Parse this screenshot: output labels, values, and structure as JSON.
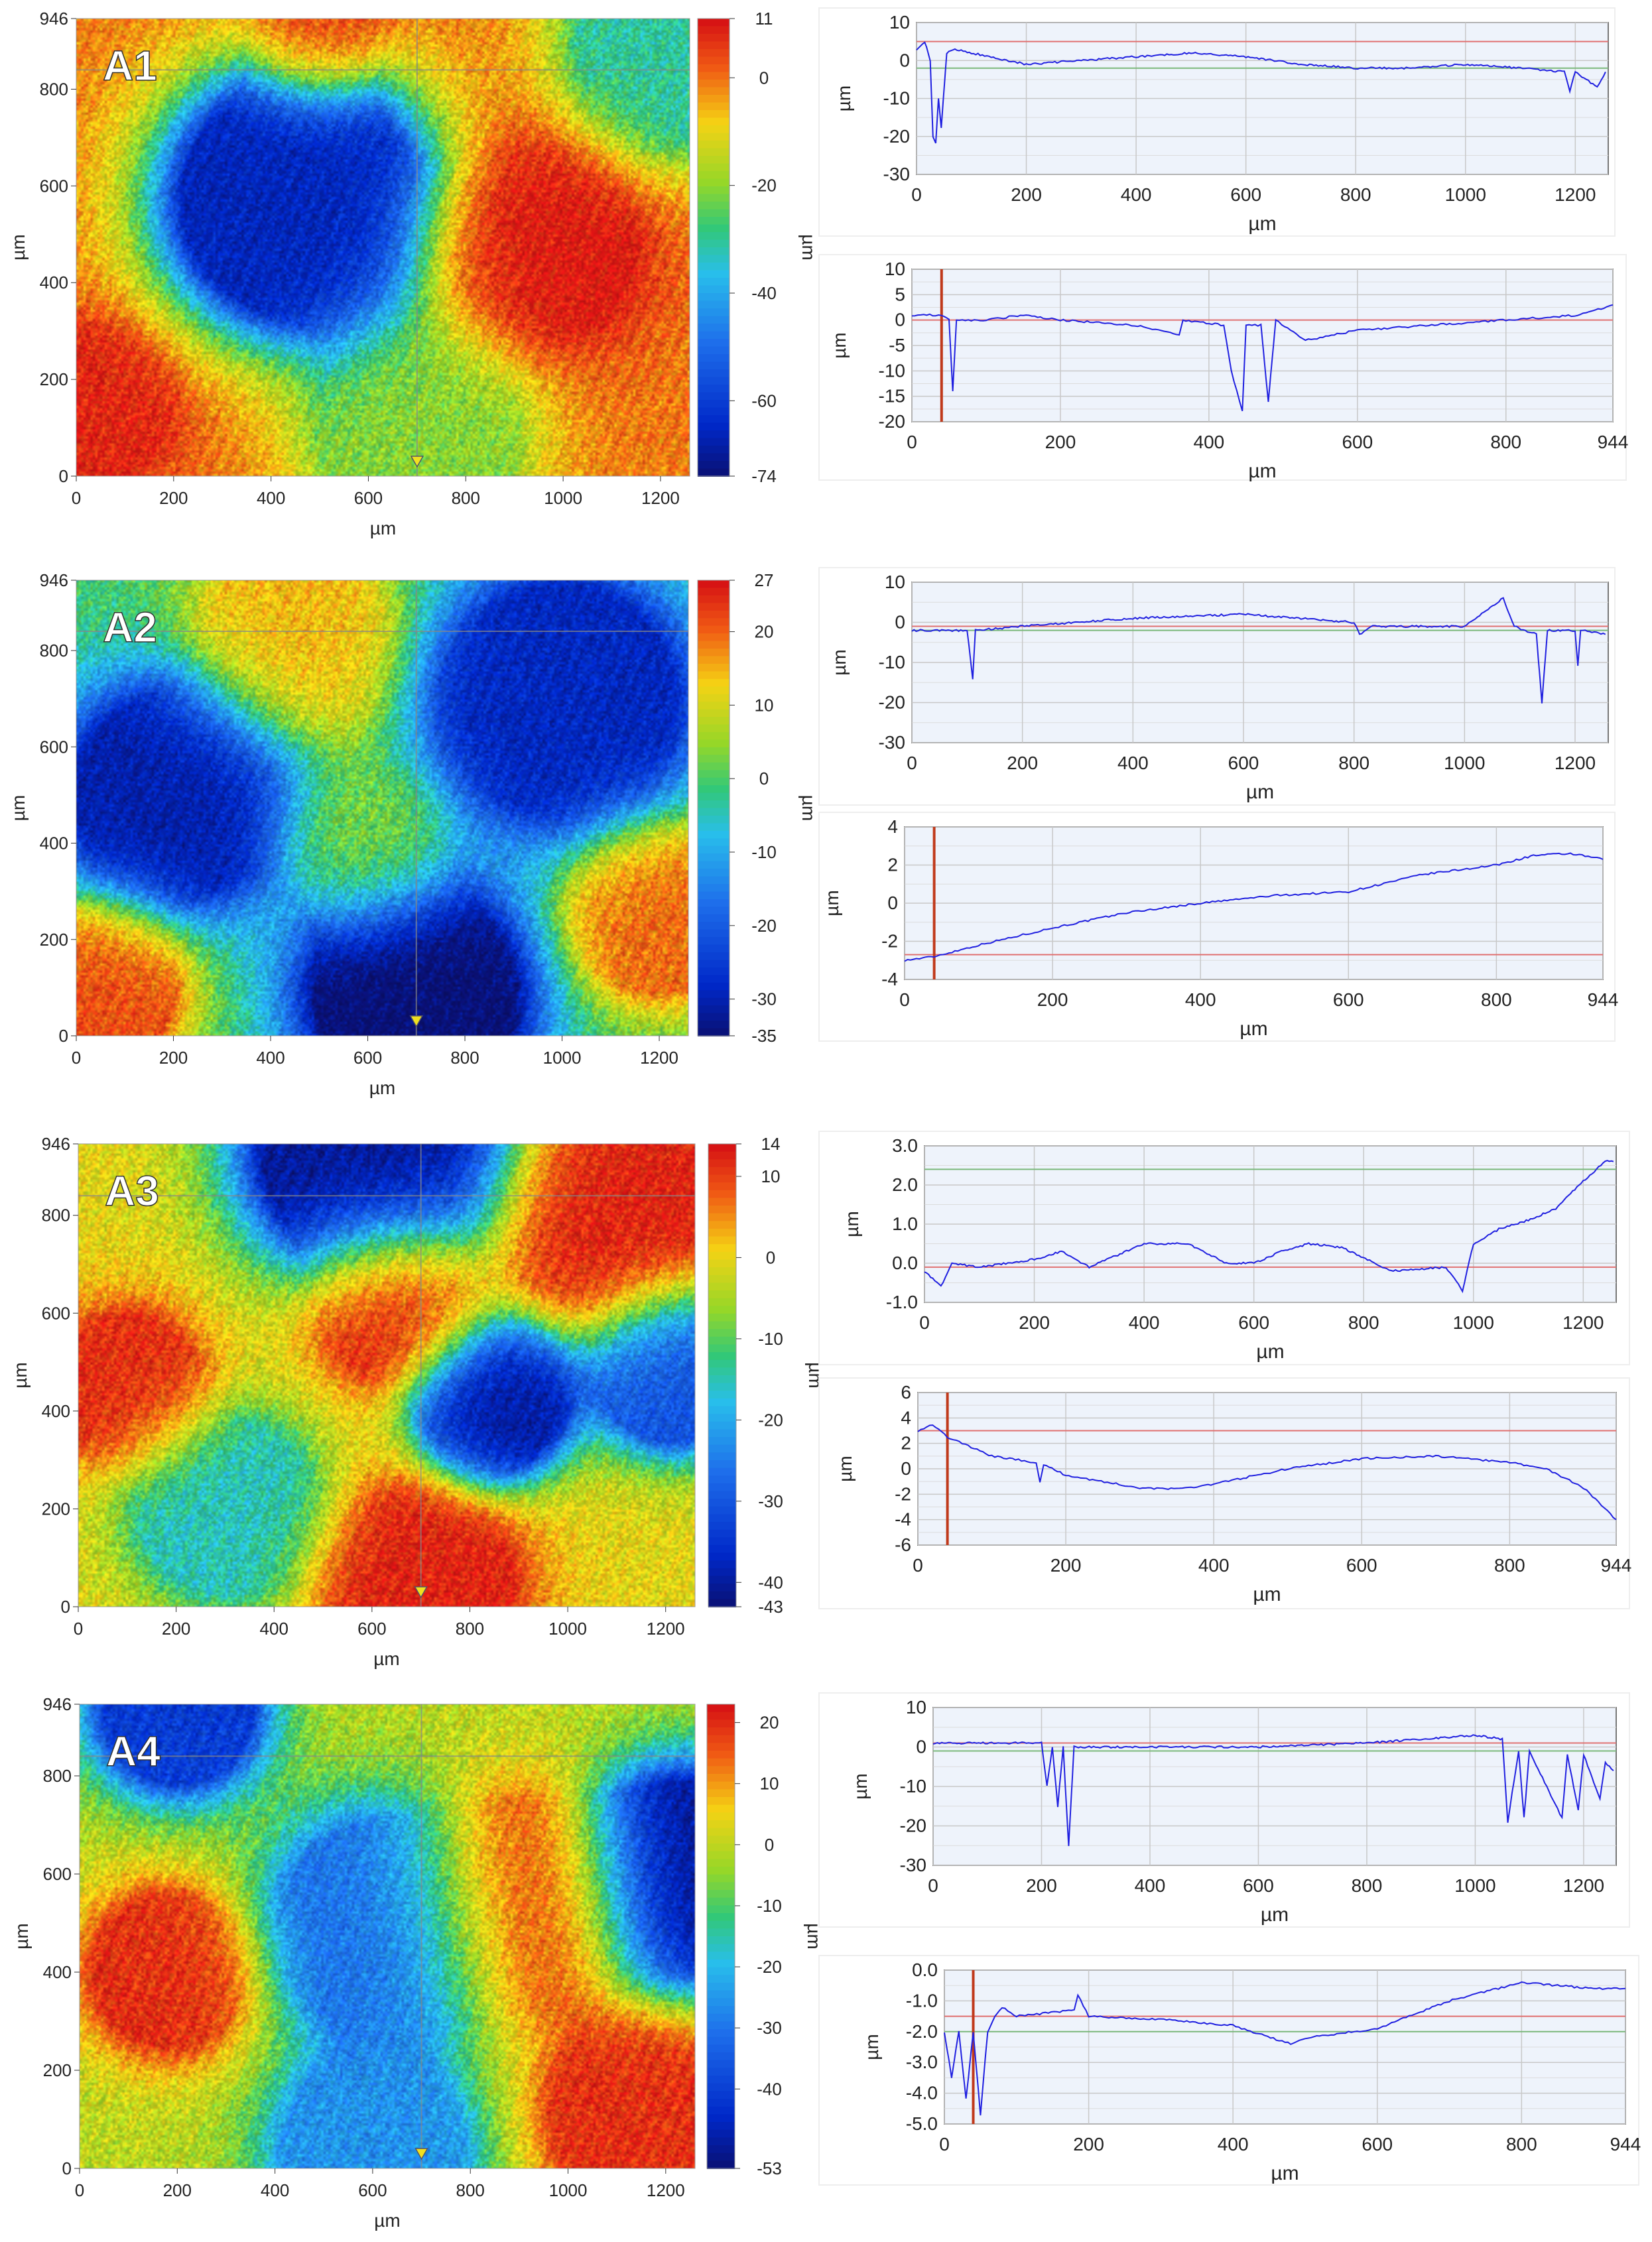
{
  "chart_data": [
    {
      "panel": "A1",
      "map": {
        "type": "heatmap",
        "label": "A1",
        "xlabel": "µm",
        "ylabel": "µm",
        "xlim": [
          0,
          1260
        ],
        "ylim": [
          0,
          946
        ],
        "xticks": [
          "0",
          "200",
          "400",
          "600",
          "800",
          "1000",
          "1200"
        ],
        "yticks": [
          "0",
          "200",
          "400",
          "600",
          "800",
          "946"
        ],
        "colorbar": {
          "label": "µm",
          "ticks": [
            "11",
            "0",
            "-20",
            "-40",
            "-60",
            "-74"
          ],
          "range": [
            -74,
            11
          ]
        },
        "features": [
          {
            "x": 450,
            "y": 570,
            "v": -65,
            "s": 230
          },
          {
            "x": 950,
            "y": 480,
            "v": 11,
            "s": 190
          },
          {
            "x": 40,
            "y": 150,
            "v": 9,
            "s": 150
          },
          {
            "x": 500,
            "y": 940,
            "v": 8,
            "s": 130
          },
          {
            "x": 1240,
            "y": 900,
            "v": -30,
            "s": 200
          },
          {
            "x": 700,
            "y": 80,
            "v": -20,
            "s": 200
          }
        ]
      },
      "profiles": [
        {
          "type": "line",
          "xlabel": "µm",
          "ylabel": "µm",
          "xlim": [
            0,
            1260
          ],
          "ylim": [
            -30,
            10
          ],
          "xticks": [
            "0",
            "200",
            "400",
            "600",
            "800",
            "1000",
            "1200"
          ],
          "yticks": [
            "10",
            "0",
            "-10",
            "-20",
            "-30"
          ],
          "ref_red": 5,
          "ref_green": -2,
          "x": [
            0,
            15,
            25,
            30,
            35,
            40,
            45,
            55,
            70,
            100,
            200,
            300,
            400,
            500,
            600,
            700,
            800,
            900,
            1000,
            1100,
            1180,
            1190,
            1200,
            1220,
            1240,
            1255
          ],
          "y": [
            3,
            5,
            0,
            -20,
            -22,
            -10,
            -18,
            2,
            3,
            2,
            -1,
            0,
            1,
            2,
            1,
            -1,
            -2,
            -2,
            -1,
            -2,
            -3,
            -8,
            -3,
            -5,
            -7,
            -3
          ]
        },
        {
          "type": "line",
          "xlabel": "µm",
          "ylabel": "µm",
          "xlim": [
            0,
            944
          ],
          "ylim": [
            -20,
            10
          ],
          "xticks": [
            "0",
            "200",
            "400",
            "600",
            "800",
            "944"
          ],
          "yticks": [
            "10",
            "5",
            "0",
            "-5",
            "-10",
            "-15",
            "-20"
          ],
          "ref_red": 0,
          "ref_marker_x": 40,
          "x": [
            0,
            40,
            50,
            55,
            60,
            100,
            150,
            200,
            300,
            360,
            365,
            420,
            430,
            445,
            450,
            470,
            480,
            490,
            530,
            600,
            700,
            800,
            900,
            944
          ],
          "y": [
            1,
            1,
            0,
            -14,
            0,
            0,
            1,
            0,
            -1,
            -3,
            0,
            -1,
            -10,
            -18,
            -1,
            -1,
            -16,
            0,
            -4,
            -2,
            -1,
            0,
            1,
            3
          ]
        }
      ]
    },
    {
      "panel": "A2",
      "map": {
        "type": "heatmap",
        "label": "A2",
        "xlabel": "µm",
        "ylabel": "µm",
        "xlim": [
          0,
          1260
        ],
        "ylim": [
          0,
          946
        ],
        "xticks": [
          "0",
          "200",
          "400",
          "600",
          "800",
          "1000",
          "1200"
        ],
        "yticks": [
          "0",
          "200",
          "400",
          "600",
          "800",
          "946"
        ],
        "colorbar": {
          "label": "µm",
          "ticks": [
            "27",
            "20",
            "10",
            "0",
            "-10",
            "-20",
            "-30",
            "-35"
          ],
          "range": [
            -35,
            27
          ]
        },
        "features": [
          {
            "x": 200,
            "y": 500,
            "v": -30,
            "s": 200
          },
          {
            "x": 700,
            "y": 80,
            "v": -35,
            "s": 200
          },
          {
            "x": 450,
            "y": 820,
            "v": 15,
            "s": 180
          },
          {
            "x": 1200,
            "y": 250,
            "v": 20,
            "s": 160
          },
          {
            "x": 50,
            "y": 100,
            "v": 22,
            "s": 150
          },
          {
            "x": 1000,
            "y": 700,
            "v": -28,
            "s": 230
          },
          {
            "x": 600,
            "y": 400,
            "v": 5,
            "s": 150
          }
        ]
      },
      "profiles": [
        {
          "type": "line",
          "xlabel": "µm",
          "ylabel": "µm",
          "xlim": [
            0,
            1260
          ],
          "ylim": [
            -30,
            10
          ],
          "xticks": [
            "0",
            "200",
            "400",
            "600",
            "800",
            "1000",
            "1200"
          ],
          "yticks": [
            "10",
            "0",
            "-10",
            "-20",
            "-30"
          ],
          "ref_red": -1,
          "ref_green": -2,
          "x": [
            0,
            50,
            100,
            110,
            115,
            200,
            400,
            600,
            800,
            810,
            830,
            1000,
            1070,
            1090,
            1130,
            1140,
            1150,
            1200,
            1205,
            1210,
            1255
          ],
          "y": [
            -2,
            -2,
            -2,
            -14,
            -2,
            -1,
            1,
            2,
            0,
            -3,
            -1,
            -1,
            6,
            -1,
            -3,
            -20,
            -2,
            -2,
            -11,
            -2,
            -3
          ]
        },
        {
          "type": "line",
          "xlabel": "µm",
          "ylabel": "µm",
          "xlim": [
            0,
            944
          ],
          "ylim": [
            -4,
            4
          ],
          "xticks": [
            "0",
            "200",
            "400",
            "600",
            "800",
            "944"
          ],
          "yticks": [
            "4",
            "2",
            "0",
            "-2",
            "-4"
          ],
          "ref_red": -2.7,
          "ref_marker_x": 40,
          "x": [
            0,
            40,
            100,
            200,
            300,
            400,
            500,
            600,
            700,
            800,
            850,
            900,
            944
          ],
          "y": [
            -3,
            -2.8,
            -2.2,
            -1.3,
            -0.5,
            0,
            0.4,
            0.6,
            1.5,
            2,
            2.5,
            2.6,
            2.3
          ]
        }
      ]
    },
    {
      "panel": "A3",
      "map": {
        "type": "heatmap",
        "label": "A3",
        "xlabel": "µm",
        "ylabel": "µm",
        "xlim": [
          0,
          1260
        ],
        "ylim": [
          0,
          946
        ],
        "xticks": [
          "0",
          "200",
          "400",
          "600",
          "800",
          "1000",
          "1200"
        ],
        "yticks": [
          "0",
          "200",
          "400",
          "600",
          "800",
          "946"
        ],
        "colorbar": {
          "label": "µm",
          "ticks": [
            "14",
            "10",
            "0",
            "-10",
            "-20",
            "-30",
            "-40",
            "-43"
          ],
          "range": [
            -43,
            14
          ]
        },
        "features": [
          {
            "x": 600,
            "y": 940,
            "v": -40,
            "s": 220
          },
          {
            "x": 100,
            "y": 450,
            "v": 12,
            "s": 140
          },
          {
            "x": 650,
            "y": 620,
            "v": 14,
            "s": 150
          },
          {
            "x": 1100,
            "y": 800,
            "v": 13,
            "s": 200
          },
          {
            "x": 850,
            "y": 420,
            "v": -40,
            "s": 130
          },
          {
            "x": 1220,
            "y": 480,
            "v": -30,
            "s": 140
          },
          {
            "x": 700,
            "y": 50,
            "v": 13,
            "s": 180
          },
          {
            "x": 300,
            "y": 200,
            "v": -15,
            "s": 170
          }
        ]
      },
      "profiles": [
        {
          "type": "line",
          "xlabel": "µm",
          "ylabel": "µm",
          "xlim": [
            0,
            1260
          ],
          "ylim": [
            -1,
            3
          ],
          "xticks": [
            "0",
            "200",
            "400",
            "600",
            "800",
            "1000",
            "1200"
          ],
          "yticks": [
            "3.0",
            "2.0",
            "1.0",
            "0.0",
            "-1.0"
          ],
          "ref_red": -0.1,
          "ref_green": 2.4,
          "x": [
            0,
            30,
            50,
            100,
            200,
            250,
            300,
            400,
            480,
            550,
            600,
            650,
            700,
            760,
            850,
            950,
            980,
            1000,
            1050,
            1100,
            1150,
            1200,
            1240,
            1255
          ],
          "y": [
            -0.2,
            -0.6,
            0,
            -0.1,
            0.1,
            0.3,
            -0.1,
            0.5,
            0.5,
            0,
            0,
            0.3,
            0.5,
            0.4,
            -0.2,
            -0.1,
            -0.7,
            0.5,
            0.9,
            1.1,
            1.4,
            2.1,
            2.6,
            2.6
          ]
        },
        {
          "type": "line",
          "xlabel": "µm",
          "ylabel": "µm",
          "xlim": [
            0,
            944
          ],
          "ylim": [
            -6,
            6
          ],
          "xticks": [
            "0",
            "200",
            "400",
            "600",
            "800",
            "944"
          ],
          "yticks": [
            "6",
            "4",
            "2",
            "0",
            "-2",
            "-4",
            "-6"
          ],
          "ref_red": 3,
          "ref_marker_x": 40,
          "x": [
            0,
            20,
            40,
            100,
            160,
            165,
            170,
            200,
            300,
            350,
            400,
            500,
            600,
            700,
            800,
            850,
            900,
            944
          ],
          "y": [
            3,
            3.5,
            2.5,
            1,
            0.5,
            -1,
            0.3,
            -0.5,
            -1.5,
            -1.6,
            -1.2,
            0,
            0.8,
            1,
            0.5,
            0,
            -1.5,
            -4
          ]
        }
      ]
    },
    {
      "panel": "A4",
      "map": {
        "type": "heatmap",
        "label": "A4",
        "xlabel": "µm",
        "ylabel": "µm",
        "xlim": [
          0,
          1260
        ],
        "ylim": [
          0,
          946
        ],
        "xticks": [
          "0",
          "200",
          "400",
          "600",
          "800",
          "1000",
          "1200"
        ],
        "yticks": [
          "0",
          "200",
          "400",
          "600",
          "800",
          "946"
        ],
        "colorbar": {
          "label": "µm",
          "ticks": [
            "20",
            "10",
            "0",
            "-10",
            "-20",
            "-30",
            "-40",
            "-53"
          ],
          "range": [
            -53,
            23
          ]
        },
        "features": [
          {
            "x": 180,
            "y": 400,
            "v": 20,
            "s": 150
          },
          {
            "x": 920,
            "y": 550,
            "v": 20,
            "s": 190
          },
          {
            "x": 620,
            "y": 500,
            "v": -30,
            "s": 200
          },
          {
            "x": 1240,
            "y": 600,
            "v": -50,
            "s": 180
          },
          {
            "x": 200,
            "y": 940,
            "v": -40,
            "s": 150
          },
          {
            "x": 600,
            "y": 30,
            "v": -25,
            "s": 180
          },
          {
            "x": 1150,
            "y": 100,
            "v": 20,
            "s": 180
          }
        ]
      },
      "profiles": [
        {
          "type": "line",
          "xlabel": "µm",
          "ylabel": "µm",
          "xlim": [
            0,
            1260
          ],
          "ylim": [
            -30,
            10
          ],
          "xticks": [
            "0",
            "200",
            "400",
            "600",
            "800",
            "1000",
            "1200"
          ],
          "yticks": [
            "10",
            "0",
            "-10",
            "-20",
            "-30"
          ],
          "ref_red": 1,
          "ref_green": -1,
          "x": [
            0,
            100,
            200,
            210,
            220,
            230,
            240,
            250,
            260,
            400,
            600,
            800,
            1000,
            1050,
            1060,
            1080,
            1090,
            1100,
            1160,
            1170,
            1190,
            1200,
            1230,
            1240,
            1255
          ],
          "y": [
            1,
            1,
            1,
            -10,
            0,
            -15,
            0,
            -25,
            0,
            0,
            0,
            1,
            3,
            2,
            -19,
            -1,
            -18,
            -1,
            -18,
            -2,
            -16,
            -2,
            -13,
            -4,
            -6
          ]
        },
        {
          "type": "line",
          "xlabel": "µm",
          "ylabel": "µm",
          "xlim": [
            0,
            944
          ],
          "ylim": [
            -5,
            0
          ],
          "xticks": [
            "0",
            "200",
            "400",
            "600",
            "800",
            "944"
          ],
          "yticks": [
            "0.0",
            "-1.0",
            "-2.0",
            "-3.0",
            "-4.0",
            "-5.0"
          ],
          "ref_red": -1.5,
          "ref_green": -2,
          "ref_marker_x": 40,
          "x": [
            0,
            10,
            20,
            30,
            40,
            50,
            60,
            70,
            80,
            100,
            180,
            185,
            200,
            300,
            400,
            480,
            500,
            600,
            700,
            800,
            850,
            900,
            944
          ],
          "y": [
            -2,
            -3.5,
            -2,
            -4.2,
            -2,
            -4.7,
            -2,
            -1.5,
            -1.2,
            -1.5,
            -1.3,
            -0.8,
            -1.5,
            -1.6,
            -1.8,
            -2.4,
            -2.2,
            -1.9,
            -1,
            -0.4,
            -0.5,
            -0.6,
            -0.6
          ]
        }
      ]
    }
  ]
}
